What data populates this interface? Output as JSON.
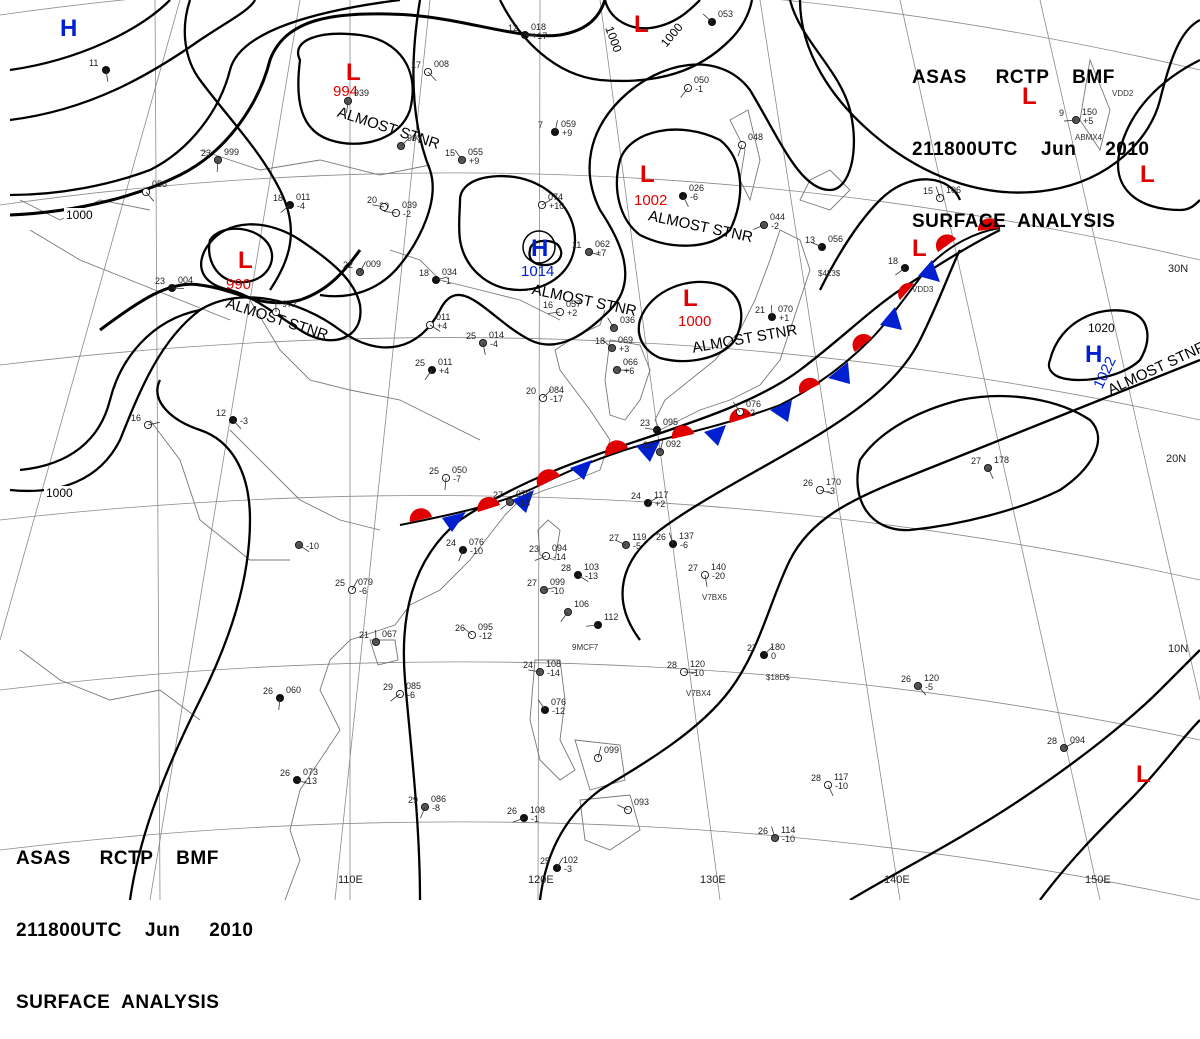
{
  "header": {
    "line1": "ASAS     RCTP    BMF",
    "line2": "211800UTC    Jun     2010",
    "line3": "SURFACE  ANALYSIS"
  },
  "colors": {
    "low": "#e00000",
    "high": "#0020d0",
    "warm_front": "#e00000",
    "cold_front": "#0020d0",
    "isobar": "#000000",
    "grid": "#8a8a8a",
    "coast": "#777777"
  },
  "graticule": {
    "lon": [
      "110E",
      "120E",
      "130E",
      "140E",
      "150E"
    ],
    "lat": [
      "30N",
      "20N",
      "10N"
    ]
  },
  "pressure_centers": [
    {
      "type": "L",
      "value": "994",
      "note": "ALMOST STNR",
      "icon": "low-letter"
    },
    {
      "type": "L",
      "value": "1002",
      "note": "ALMOST STNR",
      "icon": "low-letter"
    },
    {
      "type": "L",
      "value": "1000",
      "note": "ALMOST STNR",
      "icon": "low-letter"
    },
    {
      "type": "L",
      "value": "990",
      "note": "ALMOST STNR",
      "icon": "low-letter"
    },
    {
      "type": "H",
      "value": "1014",
      "note": "ALMOST STNR",
      "icon": "high-letter"
    },
    {
      "type": "H",
      "value": "1022",
      "note": "ALMOST STNR",
      "icon": "high-letter"
    },
    {
      "type": "H",
      "value": "",
      "note": "",
      "icon": "high-letter"
    },
    {
      "type": "L",
      "value": "",
      "note": "",
      "icon": "low-letter"
    },
    {
      "type": "L",
      "value": "",
      "note": "",
      "icon": "low-letter"
    },
    {
      "type": "L",
      "value": "",
      "note": "",
      "icon": "low-letter"
    },
    {
      "type": "L",
      "value": "",
      "note": "",
      "icon": "low-letter"
    }
  ],
  "isobar_labels": [
    "1000",
    "1000",
    "1000",
    "1000",
    "1020"
  ],
  "stations": [
    {
      "t": "12",
      "p": "018",
      "dp": "+17"
    },
    {
      "t": "17",
      "p": "008",
      "dp": ""
    },
    {
      "t": "23",
      "p": "999",
      "dp": ""
    },
    {
      "t": "18",
      "p": "011",
      "dp": "-4"
    },
    {
      "t": "20",
      "p": "039",
      "dp": "-2"
    },
    {
      "t": "15",
      "p": "055",
      "dp": "+9"
    },
    {
      "t": "7",
      "p": "059",
      "dp": "+9"
    },
    {
      "t": "",
      "p": "074",
      "dp": "+10"
    },
    {
      "t": "11",
      "p": "062",
      "dp": "+7"
    },
    {
      "t": "",
      "p": "026",
      "dp": "-6"
    },
    {
      "t": "",
      "p": "048",
      "dp": ""
    },
    {
      "t": "",
      "p": "044",
      "dp": "-2"
    },
    {
      "t": "13",
      "p": "056",
      "dp": ""
    },
    {
      "t": "15",
      "p": "106",
      "dp": ""
    },
    {
      "t": "22",
      "p": "009",
      "dp": ""
    },
    {
      "t": "18",
      "p": "034",
      "dp": "-1"
    },
    {
      "t": "",
      "p": "011",
      "dp": "+4"
    },
    {
      "t": "25",
      "p": "014",
      "dp": "-4"
    },
    {
      "t": "25",
      "p": "011",
      "dp": "+4"
    },
    {
      "t": "16",
      "p": "057",
      "dp": "+2"
    },
    {
      "t": "18",
      "p": "069",
      "dp": "+3"
    },
    {
      "t": "21",
      "p": "070",
      "dp": "+1"
    },
    {
      "t": "20",
      "p": "084",
      "dp": "-17"
    },
    {
      "t": "",
      "p": "066",
      "dp": "+6"
    },
    {
      "t": "12",
      "p": "",
      "dp": "-3"
    },
    {
      "t": "25",
      "p": "050",
      "dp": "-7"
    },
    {
      "t": "27",
      "p": "070",
      "dp": "-13"
    },
    {
      "t": "23",
      "p": "095",
      "dp": ""
    },
    {
      "t": "",
      "p": "076",
      "dp": "-2"
    },
    {
      "t": "23",
      "p": "092",
      "dp": ""
    },
    {
      "t": "24",
      "p": "117",
      "dp": "+2"
    },
    {
      "t": "26",
      "p": "170",
      "dp": "-3"
    },
    {
      "t": "27",
      "p": "178",
      "dp": ""
    },
    {
      "t": "24",
      "p": "076",
      "dp": "-10"
    },
    {
      "t": "23",
      "p": "094",
      "dp": "-14"
    },
    {
      "t": "27",
      "p": "119",
      "dp": "-5"
    },
    {
      "t": "26",
      "p": "137",
      "dp": "-6"
    },
    {
      "t": "25",
      "p": "079",
      "dp": "-6"
    },
    {
      "t": "27",
      "p": "099",
      "dp": "-10"
    },
    {
      "t": "28",
      "p": "103",
      "dp": "-13"
    },
    {
      "t": "27",
      "p": "140",
      "dp": "-20"
    },
    {
      "t": "",
      "p": "106",
      "dp": ""
    },
    {
      "t": "",
      "p": "112",
      "dp": ""
    },
    {
      "t": "26",
      "p": "095",
      "dp": "-12"
    },
    {
      "t": "21",
      "p": "067",
      "dp": ""
    },
    {
      "t": "27",
      "p": "180",
      "dp": "0"
    },
    {
      "t": "28",
      "p": "120",
      "dp": "-10"
    },
    {
      "t": "26",
      "p": "120",
      "dp": "-5"
    },
    {
      "t": "26",
      "p": "060",
      "dp": ""
    },
    {
      "t": "29",
      "p": "085",
      "dp": "-6"
    },
    {
      "t": "24",
      "p": "108",
      "dp": "-14"
    },
    {
      "t": "",
      "p": "076",
      "dp": "-12"
    },
    {
      "t": "",
      "p": "099",
      "dp": ""
    },
    {
      "t": "28",
      "p": "094",
      "dp": ""
    },
    {
      "t": "26",
      "p": "073",
      "dp": "-13"
    },
    {
      "t": "28",
      "p": "117",
      "dp": "-10"
    },
    {
      "t": "29",
      "p": "086",
      "dp": "-8"
    },
    {
      "t": "26",
      "p": "108",
      "dp": "-1"
    },
    {
      "t": "",
      "p": "093",
      "dp": ""
    },
    {
      "t": "26",
      "p": "114",
      "dp": "-10"
    },
    {
      "t": "25",
      "p": "102",
      "dp": "-3"
    },
    {
      "t": "16",
      "p": "",
      "dp": ""
    },
    {
      "t": "",
      "p": "",
      "dp": "-10"
    },
    {
      "t": "11",
      "p": "",
      "dp": ""
    },
    {
      "t": "",
      "p": "050",
      "dp": "-1"
    },
    {
      "t": "9",
      "p": "150",
      "dp": "+5"
    },
    {
      "t": "",
      "p": "053",
      "dp": ""
    },
    {
      "t": "",
      "p": "972",
      "dp": ""
    },
    {
      "t": "",
      "p": "998",
      "dp": ""
    },
    {
      "t": "23",
      "p": "004",
      "dp": ""
    },
    {
      "t": "",
      "p": "056",
      "dp": ""
    },
    {
      "t": "",
      "p": "939",
      "dp": ""
    },
    {
      "t": "18",
      "p": "",
      "dp": ""
    },
    {
      "t": "20",
      "p": "",
      "dp": ""
    },
    {
      "t": "",
      "p": "036",
      "dp": ""
    }
  ],
  "ship_ids": [
    "$423$",
    "VDD3",
    "V7BX5",
    "V7BX4",
    "9MCF7",
    "$18D$",
    "ABMX4",
    "VDD2"
  ]
}
